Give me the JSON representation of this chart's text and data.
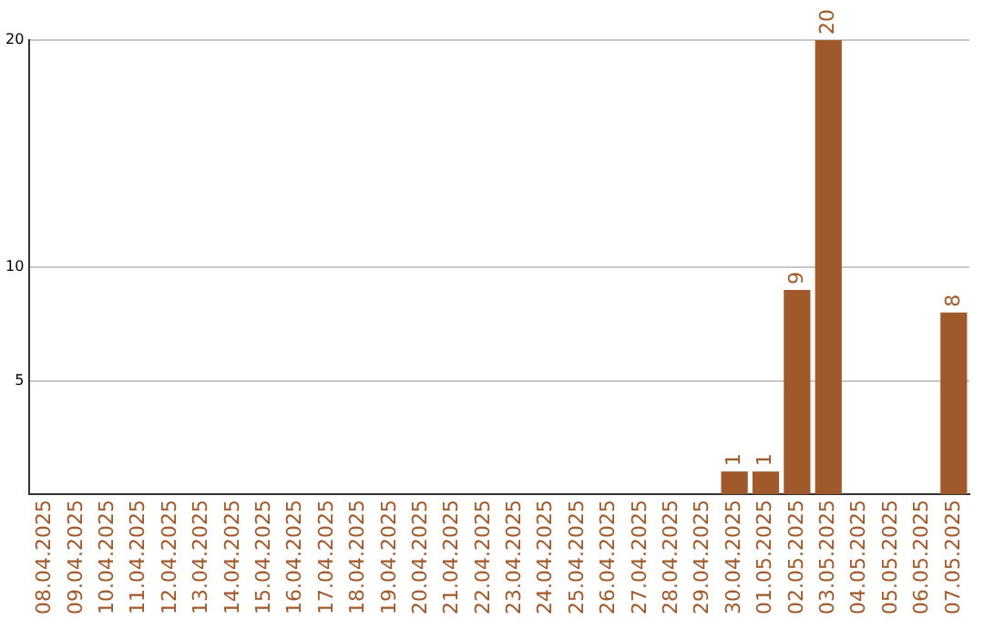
{
  "chart_data": {
    "type": "bar",
    "categories": [
      "08.04.2025",
      "09.04.2025",
      "10.04.2025",
      "11.04.2025",
      "12.04.2025",
      "13.04.2025",
      "14.04.2025",
      "15.04.2025",
      "16.04.2025",
      "17.04.2025",
      "18.04.2025",
      "19.04.2025",
      "20.04.2025",
      "21.04.2025",
      "22.04.2025",
      "23.04.2025",
      "24.04.2025",
      "25.04.2025",
      "26.04.2025",
      "27.04.2025",
      "28.04.2025",
      "29.04.2025",
      "30.04.2025",
      "01.05.2025",
      "02.05.2025",
      "03.05.2025",
      "04.05.2025",
      "05.05.2025",
      "06.05.2025",
      "07.05.2025"
    ],
    "values": [
      0,
      0,
      0,
      0,
      0,
      0,
      0,
      0,
      0,
      0,
      0,
      0,
      0,
      0,
      0,
      0,
      0,
      0,
      0,
      0,
      0,
      0,
      1,
      1,
      9,
      20,
      0,
      0,
      0,
      8
    ],
    "value_labels": [
      null,
      null,
      null,
      null,
      null,
      null,
      null,
      null,
      null,
      null,
      null,
      null,
      null,
      null,
      null,
      null,
      null,
      null,
      null,
      null,
      null,
      null,
      "1",
      "1",
      "9",
      "20",
      null,
      null,
      null,
      "8"
    ],
    "color": "#a0592b",
    "ylim": [
      0,
      20
    ],
    "yticks": [
      5,
      10,
      20
    ],
    "grid": "y"
  }
}
